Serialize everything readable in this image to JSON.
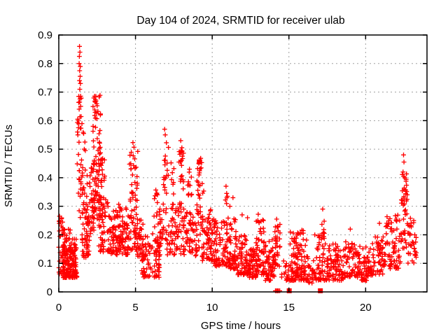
{
  "figure": {
    "title": "Day 104 of 2024, SRMTID for receiver ulab"
  },
  "chart_data": {
    "type": "scatter",
    "title": "Day 104 of 2024, SRMTID for receiver ulab",
    "xlabel": "GPS time / hours",
    "ylabel": "SRMTID / TECUs",
    "xlim": [
      0,
      24
    ],
    "ylim": [
      0,
      0.9
    ],
    "x_ticks": [
      0,
      5,
      10,
      15,
      20
    ],
    "y_ticks": [
      0,
      0.1,
      0.2,
      0.3,
      0.4,
      0.5,
      0.6,
      0.7,
      0.8,
      0.9
    ],
    "grid": "dotted, at every labeled tick, both axes",
    "legend": "none",
    "marker": "plus",
    "marker_color": "#ff0000",
    "square_marker_color": "#ff0000",
    "grid_color": "#a0a0a0",
    "axis_color": "#000000",
    "background_color": "#ffffff",
    "clusters_format": "[x_start_hours, x_end_hours, y_min_TECUs, y_max_TECUs, density_bias_toward_ymin, n_points]",
    "clusters": [
      [
        0.02,
        0.28,
        0.18,
        0.27,
        1.0,
        14
      ],
      [
        0.0,
        0.32,
        0.06,
        0.18,
        1.0,
        20
      ],
      [
        0.28,
        1.2,
        0.05,
        0.16,
        1.6,
        130
      ],
      [
        0.3,
        1.2,
        0.14,
        0.22,
        2.0,
        40
      ],
      [
        1.22,
        1.52,
        0.45,
        0.7,
        1.0,
        16
      ],
      [
        1.2,
        1.6,
        0.26,
        0.45,
        1.0,
        18
      ],
      [
        1.5,
        2.0,
        0.12,
        0.32,
        1.5,
        60
      ],
      [
        1.55,
        1.85,
        0.32,
        0.56,
        1.3,
        12
      ],
      [
        2.0,
        2.32,
        0.2,
        0.45,
        1.0,
        40
      ],
      [
        2.22,
        2.72,
        0.45,
        0.69,
        1.0,
        40
      ],
      [
        2.3,
        2.85,
        0.25,
        0.45,
        1.0,
        45
      ],
      [
        2.6,
        3.3,
        0.14,
        0.35,
        1.5,
        55
      ],
      [
        2.7,
        3.0,
        0.35,
        0.47,
        1.0,
        9
      ],
      [
        3.3,
        4.6,
        0.13,
        0.27,
        1.2,
        115
      ],
      [
        3.5,
        4.5,
        0.26,
        0.31,
        1.0,
        12
      ],
      [
        4.6,
        5.15,
        0.25,
        0.5,
        1.2,
        38
      ],
      [
        4.55,
        5.2,
        0.14,
        0.25,
        1.0,
        30
      ],
      [
        5.1,
        5.5,
        0.11,
        0.3,
        1.5,
        30
      ],
      [
        5.4,
        6.6,
        0.05,
        0.2,
        1.5,
        95
      ],
      [
        6.1,
        6.5,
        0.2,
        0.38,
        1.8,
        13
      ],
      [
        6.8,
        7.15,
        0.28,
        0.54,
        1.0,
        20
      ],
      [
        6.55,
        7.55,
        0.13,
        0.3,
        1.2,
        55
      ],
      [
        7.25,
        7.5,
        0.3,
        0.44,
        1.0,
        8
      ],
      [
        7.8,
        8.15,
        0.3,
        0.51,
        1.0,
        24
      ],
      [
        7.5,
        8.35,
        0.13,
        0.3,
        1.3,
        50
      ],
      [
        8.4,
        8.68,
        0.27,
        0.42,
        1.0,
        12
      ],
      [
        8.3,
        9.05,
        0.12,
        0.28,
        1.3,
        45
      ],
      [
        9.0,
        9.35,
        0.36,
        0.47,
        1.0,
        14
      ],
      [
        9.0,
        9.45,
        0.15,
        0.36,
        1.2,
        25
      ],
      [
        9.35,
        10.1,
        0.11,
        0.29,
        1.4,
        65
      ],
      [
        10.1,
        11.0,
        0.09,
        0.25,
        1.4,
        75
      ],
      [
        10.85,
        11.0,
        0.3,
        0.37,
        1.0,
        4
      ],
      [
        11.0,
        11.6,
        0.08,
        0.26,
        1.4,
        55
      ],
      [
        11.6,
        12.35,
        0.06,
        0.2,
        1.5,
        65
      ],
      [
        12.35,
        12.9,
        0.05,
        0.16,
        1.5,
        55
      ],
      [
        12.85,
        13.45,
        0.06,
        0.27,
        1.7,
        60
      ],
      [
        13.45,
        14.05,
        0.04,
        0.2,
        1.5,
        55
      ],
      [
        14.05,
        14.45,
        0.08,
        0.25,
        1.2,
        32
      ],
      [
        14.5,
        15.0,
        0.04,
        0.12,
        1.2,
        18
      ],
      [
        15.0,
        16.25,
        0.04,
        0.22,
        1.7,
        120
      ],
      [
        16.25,
        16.65,
        0.03,
        0.11,
        1.2,
        20
      ],
      [
        16.65,
        17.35,
        0.04,
        0.2,
        1.5,
        55
      ],
      [
        17.1,
        17.32,
        0.2,
        0.27,
        1.0,
        6
      ],
      [
        17.35,
        18.55,
        0.04,
        0.17,
        1.5,
        90
      ],
      [
        18.55,
        19.6,
        0.05,
        0.18,
        1.4,
        70
      ],
      [
        19.6,
        20.45,
        0.04,
        0.16,
        1.4,
        60
      ],
      [
        20.45,
        21.3,
        0.06,
        0.2,
        1.4,
        60
      ],
      [
        21.3,
        22.3,
        0.08,
        0.27,
        1.3,
        70
      ],
      [
        22.3,
        22.75,
        0.15,
        0.42,
        1.0,
        45
      ],
      [
        22.75,
        23.3,
        0.1,
        0.26,
        1.2,
        35
      ]
    ],
    "notable_points": [
      [
        0.05,
        0.265
      ],
      [
        0.1,
        0.245
      ],
      [
        1.35,
        0.86
      ],
      [
        1.38,
        0.84
      ],
      [
        1.34,
        0.825
      ],
      [
        1.33,
        0.8
      ],
      [
        1.4,
        0.79
      ],
      [
        1.36,
        0.775
      ],
      [
        1.39,
        0.755
      ],
      [
        1.35,
        0.74
      ],
      [
        1.41,
        0.73
      ],
      [
        1.37,
        0.71
      ],
      [
        1.3,
        0.685
      ],
      [
        1.36,
        0.665
      ],
      [
        1.43,
        0.65
      ],
      [
        1.33,
        0.64
      ],
      [
        1.23,
        0.605
      ],
      [
        1.28,
        0.575
      ],
      [
        1.22,
        0.56
      ],
      [
        1.62,
        0.555
      ],
      [
        1.7,
        0.525
      ],
      [
        1.66,
        0.5
      ],
      [
        2.42,
        0.685
      ],
      [
        2.35,
        0.668
      ],
      [
        2.5,
        0.652
      ],
      [
        2.78,
        0.465
      ],
      [
        2.84,
        0.452
      ],
      [
        4.83,
        0.523
      ],
      [
        4.9,
        0.507
      ],
      [
        6.9,
        0.57
      ],
      [
        6.94,
        0.55
      ],
      [
        7.32,
        0.452
      ],
      [
        7.95,
        0.53
      ],
      [
        8.02,
        0.505
      ],
      [
        8.52,
        0.43
      ],
      [
        9.25,
        0.468
      ],
      [
        9.05,
        0.432
      ],
      [
        10.9,
        0.37
      ],
      [
        10.94,
        0.345
      ],
      [
        11.35,
        0.33
      ],
      [
        11.15,
        0.3
      ],
      [
        11.95,
        0.27
      ],
      [
        12.3,
        0.26
      ],
      [
        13.0,
        0.272
      ],
      [
        14.2,
        0.255
      ],
      [
        17.2,
        0.29
      ],
      [
        19.0,
        0.22
      ],
      [
        20.9,
        0.24
      ],
      [
        22.47,
        0.48
      ],
      [
        22.5,
        0.455
      ],
      [
        22.44,
        0.42
      ],
      [
        22.55,
        0.4
      ],
      [
        14.12,
        0.004
      ],
      [
        14.19,
        0.004
      ],
      [
        14.26,
        0.004
      ],
      [
        14.32,
        0.004
      ],
      [
        14.4,
        0.004
      ]
    ],
    "square_points": [
      [
        9.16,
        0.455
      ],
      [
        15.02,
        0.004
      ],
      [
        17.05,
        0.004
      ]
    ]
  }
}
